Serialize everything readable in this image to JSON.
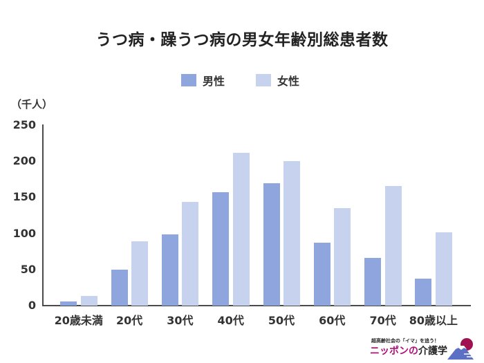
{
  "title": "うつ病・躁うつ病の男女年齢別総患者数",
  "legend": [
    {
      "label": "男性",
      "color": "#8ea5de"
    },
    {
      "label": "女性",
      "color": "#c7d2ee"
    }
  ],
  "unit_label": "（千人）",
  "y_ticks": [
    "250",
    "200",
    "150",
    "100",
    "50",
    "0"
  ],
  "logo": {
    "tagline": "超高齢社会の「イマ」を追う！",
    "name_colored": "ニッポンの",
    "name_dark": "介護学"
  },
  "chart_data": {
    "type": "bar",
    "title": "うつ病・躁うつ病の男女年齢別総患者数",
    "xlabel": "",
    "ylabel": "（千人）",
    "ylim": [
      0,
      250
    ],
    "yticks": [
      0,
      50,
      100,
      150,
      200,
      250
    ],
    "grid": false,
    "legend_position": "top",
    "categories": [
      "20歳未満",
      "20代",
      "30代",
      "40代",
      "50代",
      "60代",
      "70代",
      "80歳以上"
    ],
    "series": [
      {
        "name": "男性",
        "color": "#8ea5de",
        "values": [
          6,
          50,
          99,
          157,
          170,
          87,
          66,
          37
        ]
      },
      {
        "name": "女性",
        "color": "#c7d2ee",
        "values": [
          13,
          89,
          144,
          212,
          200,
          135,
          166,
          102
        ]
      }
    ]
  }
}
